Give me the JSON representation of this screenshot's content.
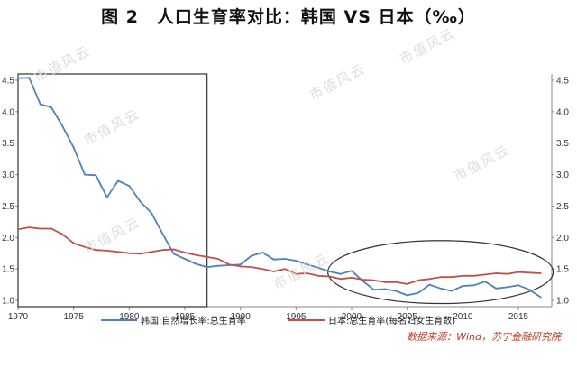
{
  "title": "图 2　人口生育率对比：韩国 VS 日本（‰）",
  "source": "数据来源：Wind，苏宁金融研究院",
  "watermark": "市值风云",
  "colors": {
    "korea": "#4f81bd",
    "japan": "#c0504d",
    "axis": "#888888",
    "annotation": "#333333"
  },
  "chart_data": {
    "type": "line",
    "x": [
      1970,
      1971,
      1972,
      1973,
      1974,
      1975,
      1976,
      1977,
      1978,
      1979,
      1980,
      1981,
      1982,
      1983,
      1984,
      1985,
      1986,
      1987,
      1988,
      1989,
      1990,
      1991,
      1992,
      1993,
      1994,
      1995,
      1996,
      1997,
      1998,
      1999,
      2000,
      2001,
      2002,
      2003,
      2004,
      2005,
      2006,
      2007,
      2008,
      2009,
      2010,
      2011,
      2012,
      2013,
      2014,
      2015,
      2016,
      2017
    ],
    "xticks": [
      1970,
      1975,
      1980,
      1985,
      1990,
      1995,
      2000,
      2005,
      2010,
      2015
    ],
    "xlim": [
      1970,
      2018
    ],
    "series": [
      {
        "name": "韩国:自然增长率:总生育率",
        "axis": "left",
        "color": "#4f81bd",
        "values": [
          4.53,
          4.54,
          4.12,
          4.07,
          3.77,
          3.43,
          3.0,
          2.99,
          2.64,
          2.9,
          2.82,
          2.57,
          2.39,
          2.06,
          1.74,
          1.66,
          1.58,
          1.53,
          1.55,
          1.56,
          1.57,
          1.71,
          1.76,
          1.65,
          1.66,
          1.63,
          1.57,
          1.52,
          1.46,
          1.42,
          1.47,
          1.31,
          1.17,
          1.18,
          1.15,
          1.08,
          1.12,
          1.25,
          1.19,
          1.15,
          1.23,
          1.24,
          1.3,
          1.19,
          1.21,
          1.24,
          1.17,
          1.05
        ]
      },
      {
        "name": "日本:总生育率(每名妇女生育数)",
        "axis": "right",
        "color": "#c0504d",
        "values": [
          2.13,
          2.16,
          2.14,
          2.14,
          2.05,
          1.91,
          1.85,
          1.8,
          1.79,
          1.77,
          1.75,
          1.74,
          1.77,
          1.8,
          1.81,
          1.76,
          1.72,
          1.69,
          1.66,
          1.57,
          1.54,
          1.53,
          1.5,
          1.46,
          1.5,
          1.42,
          1.43,
          1.39,
          1.38,
          1.34,
          1.36,
          1.33,
          1.32,
          1.29,
          1.29,
          1.26,
          1.32,
          1.34,
          1.37,
          1.37,
          1.39,
          1.39,
          1.41,
          1.43,
          1.42,
          1.45,
          1.44,
          1.43
        ]
      }
    ],
    "yleft": {
      "ylim": [
        0.9,
        4.6
      ],
      "ticks": [
        "1.0",
        "1.5",
        "2.0",
        "2.5",
        "3.0",
        "3.5",
        "4.0",
        "4.5"
      ]
    },
    "yright": {
      "ylim": [
        0.9,
        4.6
      ],
      "ticks": [
        "1.0",
        "1.5",
        "2.0",
        "2.5",
        "3.0",
        "3.5",
        "4.0",
        "4.5"
      ]
    },
    "legend_position": "bottom",
    "grid": false,
    "annotations": [
      {
        "shape": "rectangle",
        "x_range": [
          1970,
          1987
        ],
        "y_range": [
          0.9,
          4.6
        ]
      },
      {
        "shape": "ellipse",
        "x_range": [
          1999,
          2017
        ],
        "y_range": [
          0.95,
          1.95
        ]
      }
    ]
  }
}
